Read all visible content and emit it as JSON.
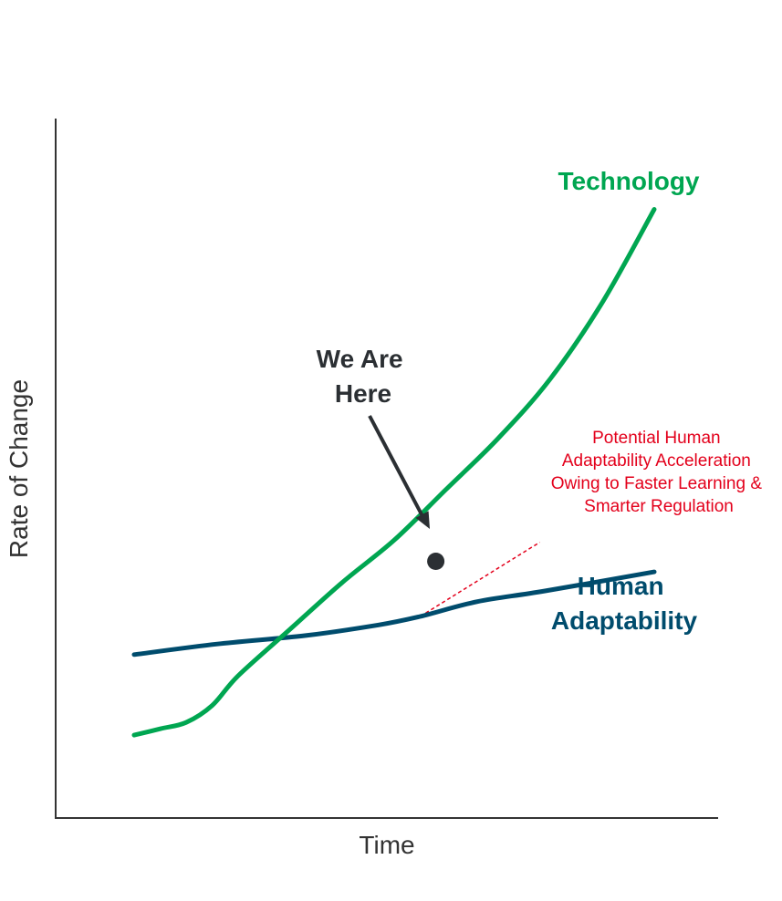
{
  "chart_data": {
    "type": "line",
    "xlabel": "Time",
    "ylabel": "Rate of Change",
    "x_ticks_shown": false,
    "y_ticks_shown": false,
    "grid": false,
    "series": [
      {
        "name": "Technology",
        "color": "#00a651",
        "points": [
          [
            0.0,
            0.09
          ],
          [
            0.05,
            0.105
          ],
          [
            0.1,
            0.12
          ],
          [
            0.15,
            0.16
          ],
          [
            0.2,
            0.23
          ],
          [
            0.3,
            0.34
          ],
          [
            0.4,
            0.45
          ],
          [
            0.5,
            0.55
          ],
          [
            0.6,
            0.67
          ],
          [
            0.7,
            0.79
          ],
          [
            0.8,
            0.93
          ],
          [
            0.9,
            1.11
          ],
          [
            1.0,
            1.33
          ]
        ]
      },
      {
        "name": "Human Adaptability",
        "name_lines": [
          "Human",
          "Adaptability"
        ],
        "color": "#004c6d",
        "points": [
          [
            0.0,
            0.28
          ],
          [
            0.16,
            0.305
          ],
          [
            0.33,
            0.325
          ],
          [
            0.47,
            0.35
          ],
          [
            0.55,
            0.37
          ],
          [
            0.66,
            0.405
          ],
          [
            0.79,
            0.43
          ],
          [
            1.0,
            0.475
          ]
        ]
      }
    ],
    "annotations": {
      "we_are_here": {
        "lines": [
          "We Are",
          "Here"
        ],
        "x": 0.58,
        "y": 0.5
      },
      "potential": {
        "lines": [
          "Potential Human",
          "Adaptability Acceleration",
          "Owing to Faster Learning &",
          "Smarter Regulation"
        ],
        "color": "#e3001b",
        "from": [
          0.55,
          0.37
        ],
        "to": [
          0.78,
          0.545
        ]
      }
    },
    "xlim": [
      0,
      1
    ],
    "ylim": [
      0,
      1.33
    ]
  },
  "colors": {
    "axis": "#333333",
    "marker": "#2b2f33"
  }
}
